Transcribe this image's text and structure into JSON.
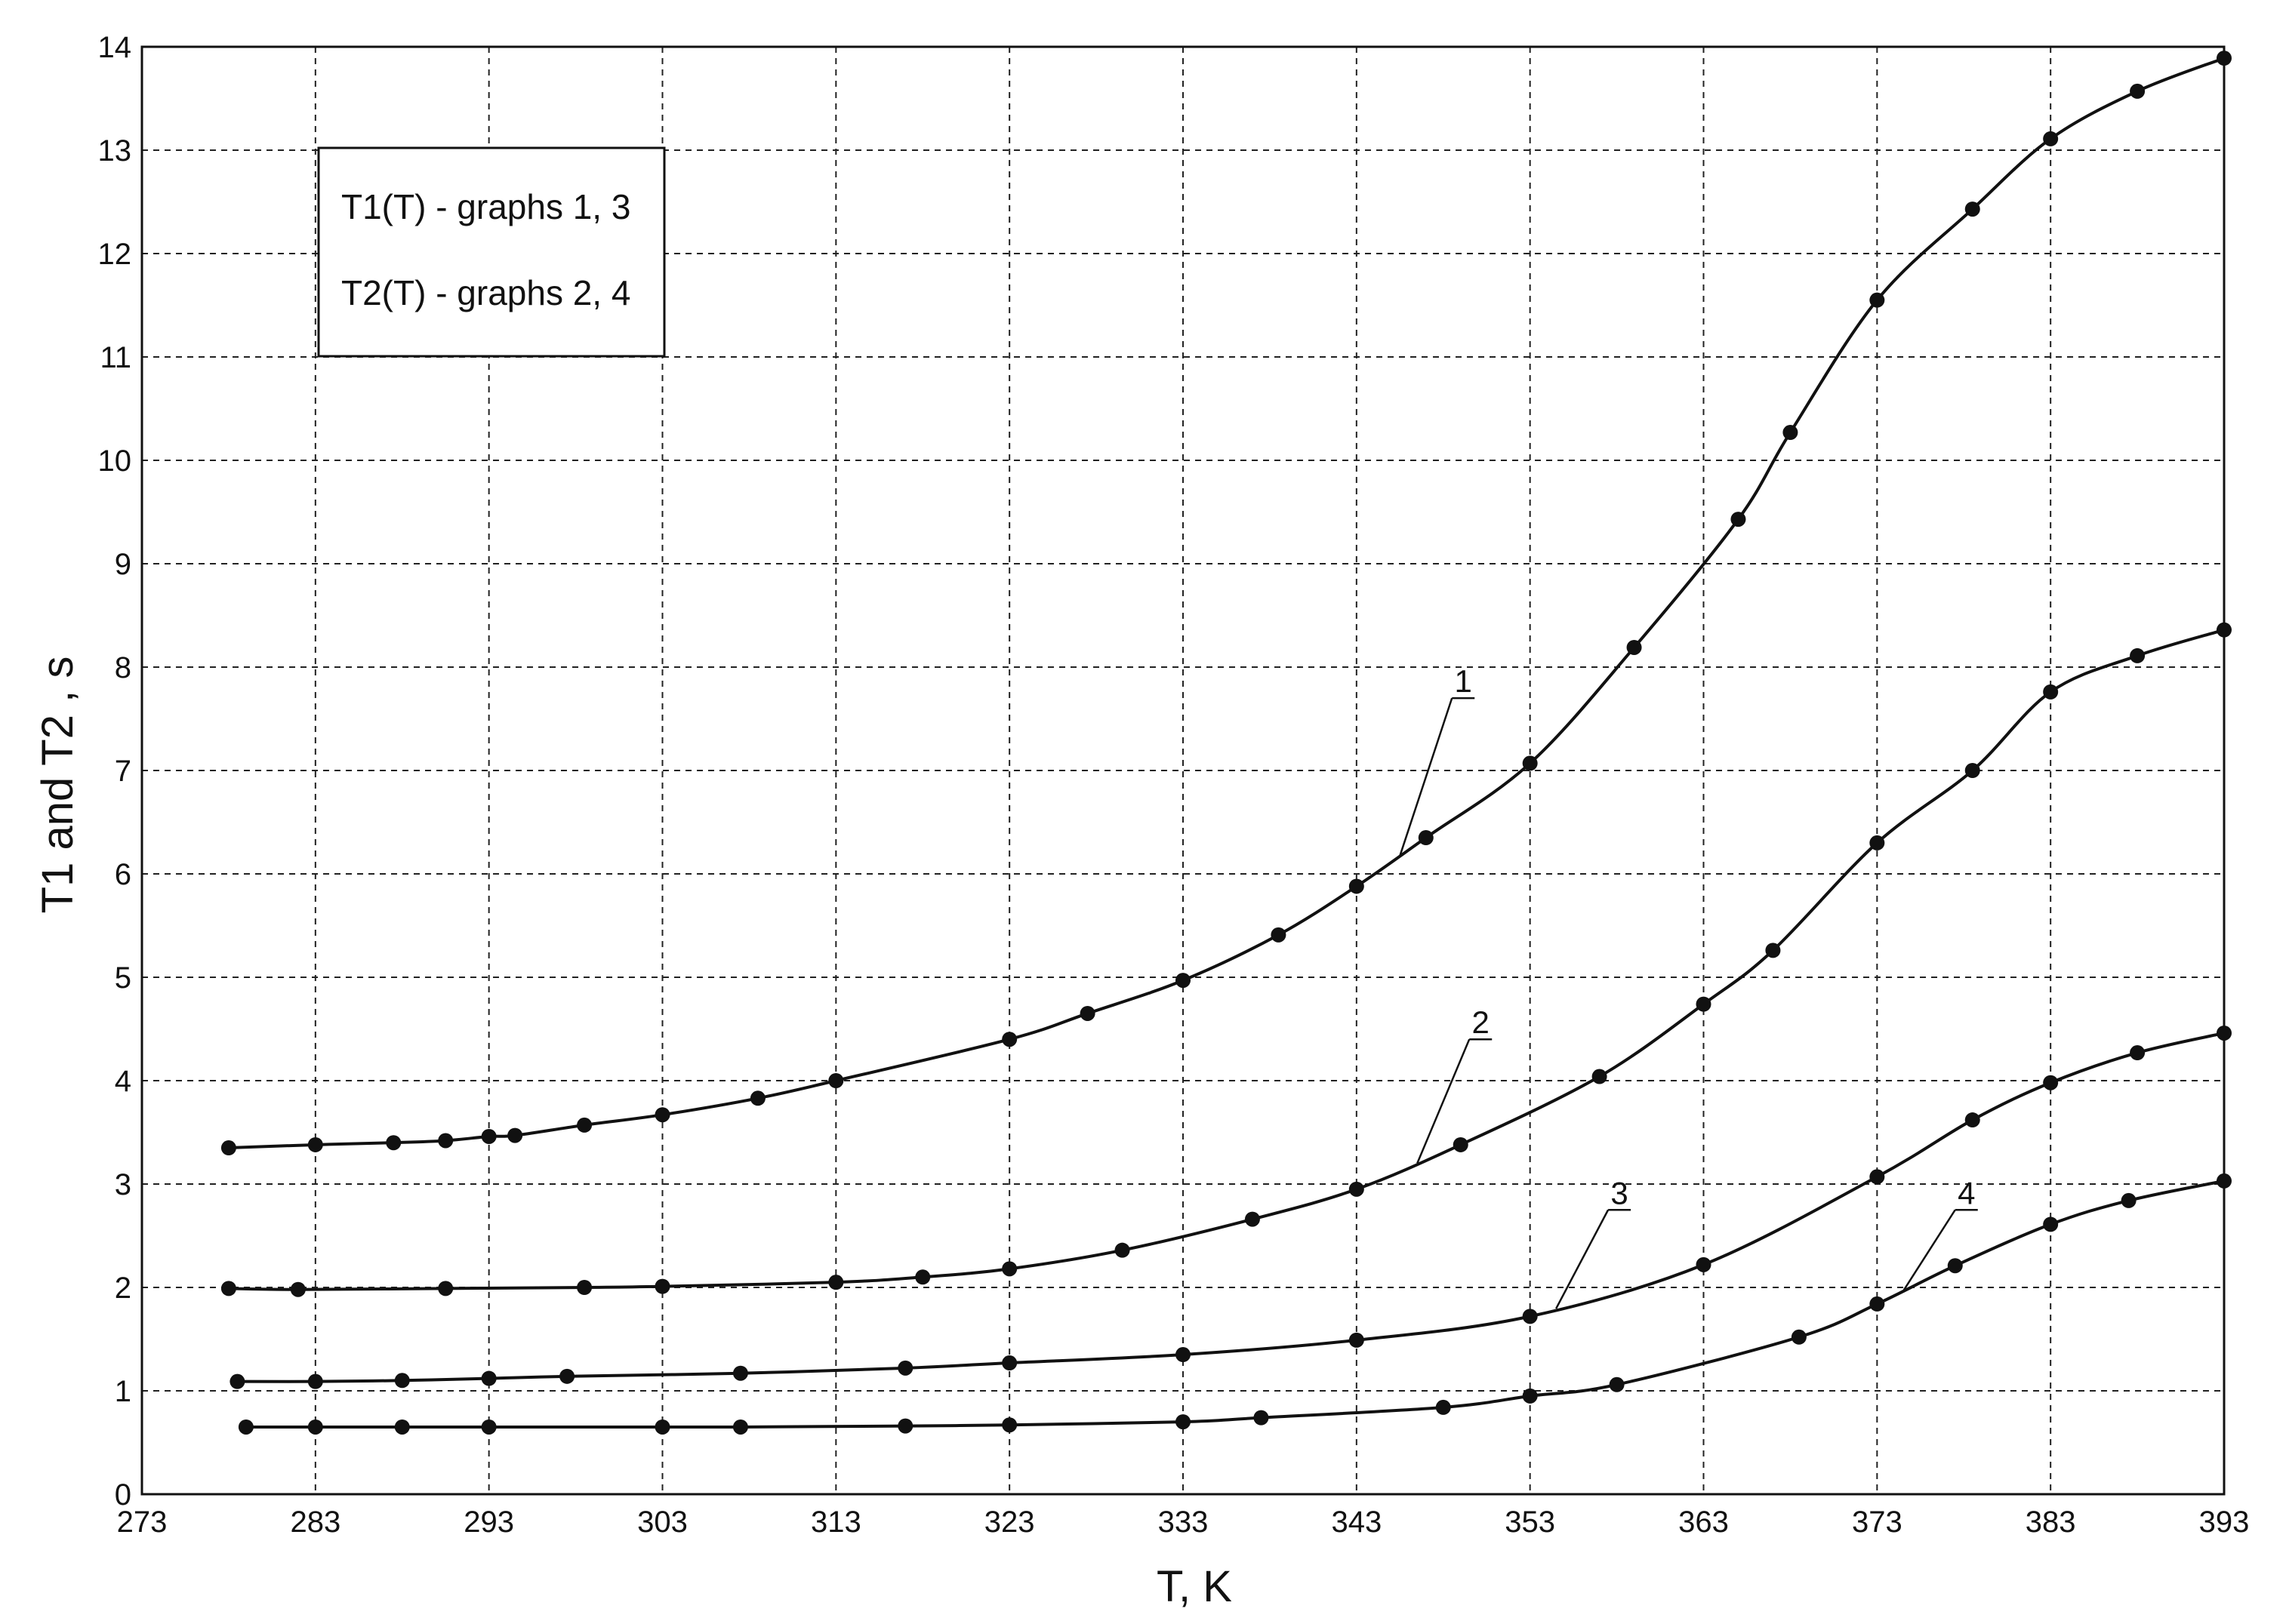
{
  "chart_data": {
    "type": "line",
    "xlabel": "T, K",
    "ylabel": "T1 and T2 , s",
    "xlim": [
      273,
      393
    ],
    "ylim": [
      0,
      14
    ],
    "x_ticks": [
      "273",
      "283",
      "293",
      "303",
      "313",
      "323",
      "333",
      "343",
      "353",
      "363",
      "373",
      "383",
      "393"
    ],
    "y_ticks": [
      "0",
      "1",
      "2",
      "3",
      "4",
      "5",
      "6",
      "7",
      "8",
      "9",
      "10",
      "11",
      "12",
      "13",
      "14"
    ],
    "grid": true,
    "legend": {
      "placement": "top-left",
      "line1": "T1(T) - graphs 1, 3",
      "line2": "T2(T) - graphs 2, 4"
    },
    "series": [
      {
        "name": "1",
        "x": [
          278,
          283,
          287.5,
          290.5,
          293,
          294.5,
          298.5,
          303,
          308.5,
          313,
          323,
          327.5,
          333,
          338.5,
          343,
          347,
          353,
          359,
          365,
          368,
          373,
          378.5,
          383,
          388,
          393
        ],
        "y": [
          3.35,
          3.38,
          3.4,
          3.42,
          3.46,
          3.47,
          3.57,
          3.67,
          3.83,
          4.0,
          4.4,
          4.65,
          4.97,
          5.41,
          5.88,
          6.35,
          7.07,
          8.19,
          9.43,
          10.27,
          11.55,
          12.43,
          13.11,
          13.57,
          13.89
        ]
      },
      {
        "name": "2",
        "x": [
          278,
          282,
          290.5,
          298.5,
          303,
          313,
          318,
          323,
          329.5,
          337,
          343,
          349,
          357,
          363,
          367,
          373,
          378.5,
          383,
          388,
          393
        ],
        "y": [
          1.99,
          1.98,
          1.99,
          2.0,
          2.01,
          2.05,
          2.1,
          2.18,
          2.36,
          2.66,
          2.95,
          3.38,
          4.04,
          4.74,
          5.26,
          6.3,
          7.0,
          7.76,
          8.11,
          8.36
        ]
      },
      {
        "name": "3",
        "x": [
          278.5,
          283,
          288,
          293,
          297.5,
          307.5,
          317,
          323,
          333,
          343,
          353,
          363,
          373,
          378.5,
          383,
          388,
          393
        ],
        "y": [
          1.09,
          1.09,
          1.1,
          1.12,
          1.14,
          1.17,
          1.22,
          1.27,
          1.35,
          1.49,
          1.72,
          2.22,
          3.07,
          3.62,
          3.98,
          4.27,
          4.46
        ]
      },
      {
        "name": "4",
        "x": [
          279,
          283,
          288,
          293,
          303,
          307.5,
          317,
          323,
          333,
          337.5,
          348,
          353,
          358,
          368.5,
          373,
          377.5,
          383,
          387.5,
          393
        ],
        "y": [
          0.65,
          0.65,
          0.65,
          0.65,
          0.65,
          0.65,
          0.66,
          0.67,
          0.7,
          0.74,
          0.84,
          0.95,
          1.06,
          1.52,
          1.84,
          2.21,
          2.61,
          2.84,
          3.03
        ]
      }
    ]
  }
}
